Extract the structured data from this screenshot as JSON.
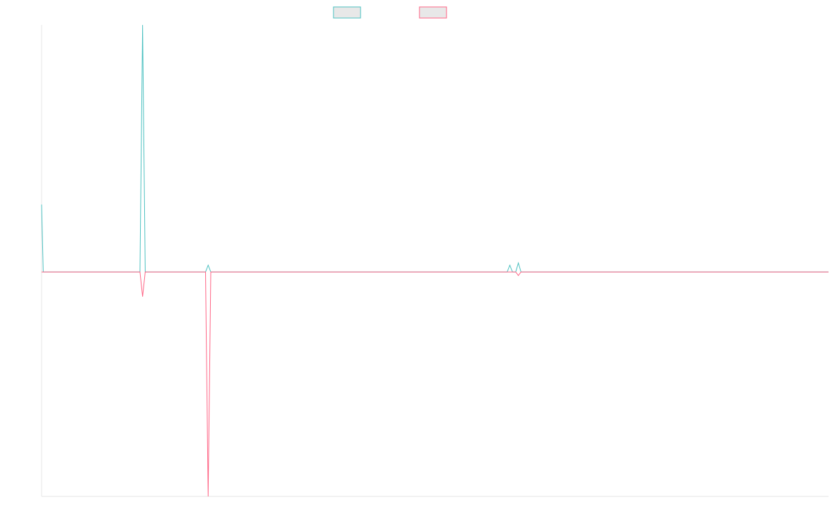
{
  "chart_data": {
    "type": "line",
    "title": "",
    "xlabel": "",
    "ylabel": "",
    "x": [
      0,
      1,
      2,
      3,
      4,
      5,
      6,
      7,
      8,
      9,
      10,
      11,
      12,
      13,
      14,
      15,
      16,
      17,
      18,
      19,
      20,
      21,
      22,
      23,
      24,
      25,
      26,
      27,
      28,
      29,
      30,
      31,
      32,
      33,
      34,
      35,
      36,
      37,
      38,
      39,
      40,
      41,
      42,
      43,
      44,
      45,
      46,
      47,
      48,
      49,
      50,
      51,
      52,
      53,
      54,
      55,
      56,
      57,
      58,
      59,
      60,
      61,
      62,
      63,
      64,
      65,
      66,
      67,
      68,
      69,
      70,
      71,
      72,
      73,
      74,
      75,
      76,
      77,
      78,
      79,
      80,
      81,
      82,
      83,
      84,
      85,
      86,
      87,
      88,
      89,
      90,
      91,
      92,
      93,
      94,
      95,
      96,
      97,
      98,
      99,
      100,
      101,
      102,
      103,
      104,
      105,
      106,
      107,
      108,
      109,
      110,
      111,
      112,
      113,
      114,
      115,
      116,
      117,
      118,
      119,
      120,
      121,
      122,
      123,
      124,
      125,
      126,
      127,
      128,
      129,
      130,
      131,
      132,
      133,
      134,
      135,
      136,
      137,
      138,
      139,
      140,
      141,
      142,
      143,
      144,
      145,
      146,
      147,
      148,
      149,
      150,
      151,
      152,
      153,
      154,
      155,
      156,
      157,
      158,
      159,
      160,
      161,
      162,
      163,
      164,
      165,
      166,
      167,
      168,
      169,
      170,
      171,
      172,
      173,
      174,
      175,
      176,
      177,
      178,
      179,
      180,
      181,
      182,
      183,
      184,
      185,
      186,
      187,
      188,
      189,
      190,
      191,
      192,
      193,
      194,
      195,
      196,
      197,
      198,
      199,
      200,
      201,
      202,
      203,
      204,
      205,
      206,
      207,
      208,
      209,
      210,
      211,
      212,
      213,
      214,
      215,
      216,
      217,
      218,
      219,
      220,
      221,
      222,
      223,
      224,
      225,
      226,
      227,
      228,
      229,
      230,
      231,
      232,
      233,
      234,
      235,
      236,
      237,
      238,
      239,
      240
    ],
    "ylim": [
      -500,
      550
    ],
    "xlim": [
      0,
      240
    ],
    "grid": false,
    "legend_position": "top-center",
    "series": [
      {
        "color": "#4bc0c0",
        "points": [
          [
            0,
            150
          ],
          [
            0.5,
            0
          ],
          [
            30,
            0
          ],
          [
            30.8,
            550
          ],
          [
            31.6,
            0
          ],
          [
            50,
            0
          ],
          [
            50.8,
            15
          ],
          [
            51.6,
            0
          ],
          [
            142,
            0
          ],
          [
            142.8,
            15
          ],
          [
            143.6,
            0
          ],
          [
            144.6,
            0
          ],
          [
            145.4,
            20
          ],
          [
            146.2,
            0
          ],
          [
            240,
            0
          ]
        ]
      },
      {
        "color": "#ff6384",
        "points": [
          [
            0,
            0
          ],
          [
            30,
            0
          ],
          [
            30.8,
            -55
          ],
          [
            31.6,
            0
          ],
          [
            50,
            0
          ],
          [
            50.8,
            -500
          ],
          [
            51.6,
            0
          ],
          [
            144.6,
            0
          ],
          [
            145.4,
            -8
          ],
          [
            146.2,
            0
          ],
          [
            240,
            0
          ]
        ]
      }
    ]
  }
}
